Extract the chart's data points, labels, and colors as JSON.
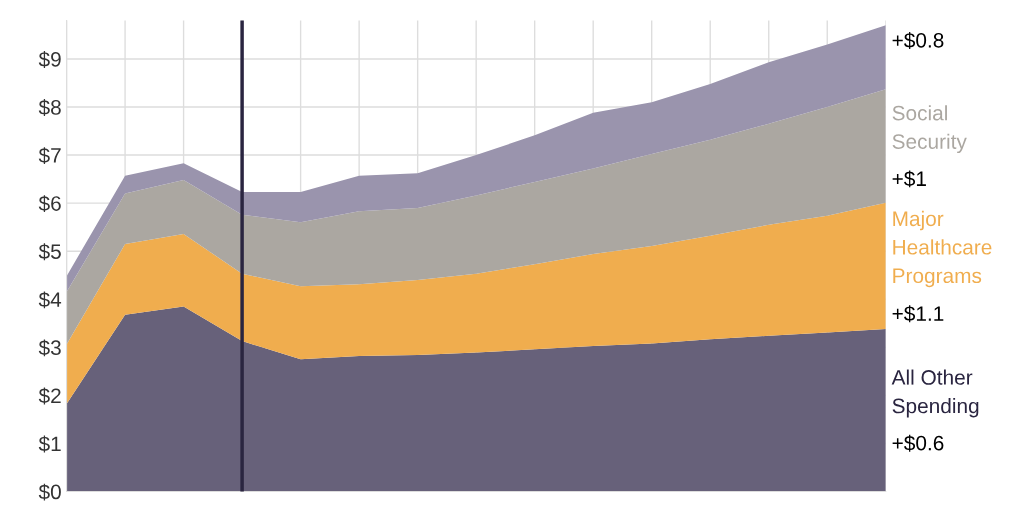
{
  "chart_data": {
    "type": "area",
    "stacked": true,
    "categories": [
      null,
      null,
      null,
      null,
      null,
      null,
      null,
      null,
      null,
      null,
      null,
      null,
      null,
      null,
      null
    ],
    "series": [
      {
        "name": "All Other\nSpending",
        "color": "#67617a",
        "values": [
          1.82,
          3.68,
          3.85,
          3.13,
          2.75,
          2.82,
          2.84,
          2.89,
          2.96,
          3.03,
          3.08,
          3.17,
          3.24,
          3.31,
          3.38
        ]
      },
      {
        "name": "Major\nHealthcare\nPrograms",
        "color": "#f0ad4e",
        "values": [
          1.24,
          1.47,
          1.51,
          1.4,
          1.52,
          1.49,
          1.56,
          1.64,
          1.77,
          1.91,
          2.03,
          2.15,
          2.31,
          2.43,
          2.63
        ]
      },
      {
        "name": "Social\nSecurity",
        "color": "#aba7a1",
        "values": [
          1.09,
          1.05,
          1.12,
          1.23,
          1.33,
          1.52,
          1.5,
          1.63,
          1.71,
          1.78,
          1.91,
          2.0,
          2.1,
          2.26,
          2.36
        ]
      },
      {
        "color": "#9a94ad",
        "values": [
          0.33,
          0.37,
          0.35,
          0.47,
          0.63,
          0.74,
          0.72,
          0.84,
          0.97,
          1.16,
          1.08,
          1.16,
          1.28,
          1.3,
          1.33
        ]
      }
    ],
    "annotations": [
      "+$0.6",
      "+$1.1",
      "+$1",
      "+$0.8"
    ],
    "ylim": [
      0,
      9.8
    ],
    "yticks": [
      {
        "value": 0,
        "label": "$0"
      },
      {
        "value": 1,
        "label": "$1"
      },
      {
        "value": 2,
        "label": "$2"
      },
      {
        "value": 3,
        "label": "$3"
      },
      {
        "value": 4,
        "label": "$4"
      },
      {
        "value": 5,
        "label": "$5"
      },
      {
        "value": 6,
        "label": "$6"
      },
      {
        "value": 7,
        "label": "$7"
      },
      {
        "value": 8,
        "label": "$8"
      },
      {
        "value": 9,
        "label": "$9"
      }
    ],
    "grid": true,
    "tick_labels": "y"
  }
}
